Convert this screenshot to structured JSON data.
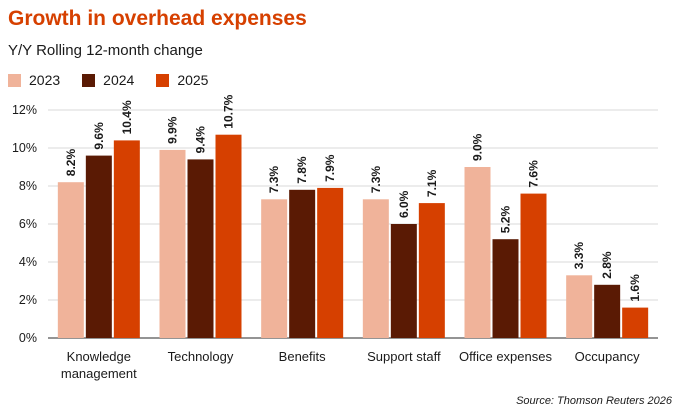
{
  "chart_data": {
    "type": "bar",
    "title": "Growth in overhead expenses",
    "subtitle": "Y/Y Rolling 12-month change",
    "categories": [
      [
        "Knowledge",
        "management"
      ],
      [
        "Technology"
      ],
      [
        "Benefits"
      ],
      [
        "Support staff"
      ],
      [
        "Office expenses"
      ],
      [
        "Occupancy"
      ]
    ],
    "series": [
      {
        "name": "2023",
        "color": "#f0b39a",
        "values": [
          8.2,
          9.9,
          7.3,
          7.3,
          9.0,
          3.3
        ]
      },
      {
        "name": "2024",
        "color": "#5a1a04",
        "values": [
          9.6,
          9.4,
          7.8,
          6.0,
          5.2,
          2.8
        ]
      },
      {
        "name": "2025",
        "color": "#d64000",
        "values": [
          10.4,
          10.7,
          7.9,
          7.1,
          7.6,
          1.6
        ]
      }
    ],
    "value_labels": [
      [
        "8.2%",
        "9.9%",
        "7.3%",
        "7.3%",
        "9.0%",
        "3.3%"
      ],
      [
        "9.6%",
        "9.4%",
        "7.8%",
        "6.0%",
        "5.2%",
        "2.8%"
      ],
      [
        "10.4%",
        "10.7%",
        "7.9%",
        "7.1%",
        "7.6%",
        "1.6%"
      ]
    ],
    "yticks": [
      0,
      2,
      4,
      6,
      8,
      10,
      12
    ],
    "ytick_labels": [
      "0%",
      "2%",
      "4%",
      "6%",
      "8%",
      "10%",
      "12%"
    ],
    "ylim": [
      0,
      12
    ],
    "grid": true,
    "legend_position": "top-left",
    "source": "Source: Thomson Reuters 2026"
  }
}
